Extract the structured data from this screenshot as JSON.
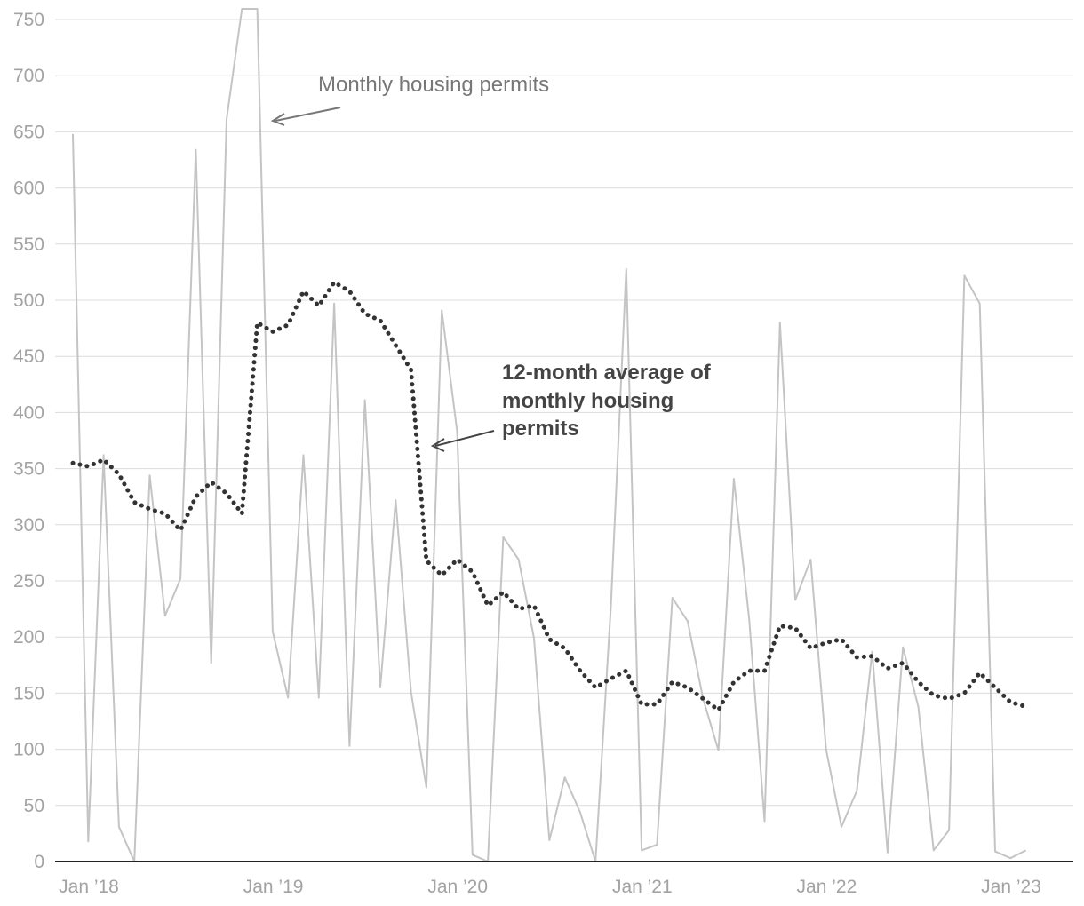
{
  "chart_data": {
    "type": "line",
    "title": "",
    "xlabel": "",
    "ylabel": "",
    "ylim": [
      0,
      760
    ],
    "y_ticks": [
      0,
      50,
      100,
      150,
      200,
      250,
      300,
      350,
      400,
      450,
      500,
      550,
      600,
      650,
      700,
      750
    ],
    "x_ticks": [
      {
        "label": "Jan ’18",
        "month_index": 0
      },
      {
        "label": "Jan ’19",
        "month_index": 12
      },
      {
        "label": "Jan ’20",
        "month_index": 24
      },
      {
        "label": "Jan ’21",
        "month_index": 36
      },
      {
        "label": "Jan ’22",
        "month_index": 48
      },
      {
        "label": "Jan ’23",
        "month_index": 60
      }
    ],
    "grid": true,
    "series": [
      {
        "name": "Monthly housing permits",
        "style": "solid-light",
        "color": "#c4c4c4",
        "values": [
          648,
          18,
          362,
          31,
          0,
          344,
          219,
          252,
          634,
          177,
          661,
          760,
          760,
          205,
          146,
          362,
          146,
          497,
          103,
          411,
          155,
          322,
          151,
          66,
          491,
          383,
          6,
          0,
          289,
          269,
          199,
          19,
          75,
          44,
          0,
          227,
          528,
          10,
          15,
          235,
          214,
          145,
          99,
          341,
          216,
          36,
          480,
          233,
          269,
          100,
          31,
          63,
          187,
          8,
          191,
          138,
          10,
          28,
          522,
          497,
          9,
          3,
          10
        ]
      },
      {
        "name": "12-month average of monthly housing permits",
        "style": "dotted-dark",
        "color": "#333333",
        "values": [
          355,
          352,
          358,
          345,
          320,
          314,
          310,
          295,
          325,
          338,
          328,
          310,
          480,
          472,
          478,
          508,
          495,
          516,
          508,
          488,
          482,
          460,
          438,
          268,
          255,
          269,
          258,
          228,
          240,
          225,
          228,
          198,
          190,
          170,
          155,
          163,
          170,
          140,
          140,
          160,
          155,
          145,
          135,
          160,
          170,
          170,
          210,
          208,
          190,
          195,
          198,
          182,
          183,
          172,
          177,
          160,
          148,
          145,
          150,
          168,
          155,
          142,
          138
        ]
      }
    ],
    "annotations": [
      {
        "text": "Monthly housing permits",
        "series": 0
      },
      {
        "text_lines": [
          "12-month average of",
          "monthly housing",
          "permits"
        ],
        "series": 1
      }
    ]
  },
  "colors": {
    "grid": "#dcdcdc",
    "axis": "#222222",
    "tick_text": "#a3a3a3",
    "annotation_light": "#777777",
    "annotation_dark": "#444444"
  }
}
